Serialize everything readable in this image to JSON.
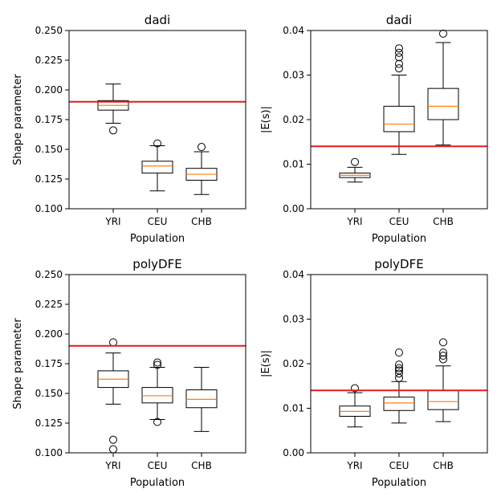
{
  "chart_data": [
    {
      "type": "boxplot",
      "title": "dadi",
      "xlabel": "Population",
      "ylabel": "Shape parameter",
      "categories": [
        "YRI",
        "CEU",
        "CHB"
      ],
      "ylim": [
        0.1,
        0.25
      ],
      "yticks": [
        "0.100",
        "0.125",
        "0.150",
        "0.175",
        "0.200",
        "0.225",
        "0.250"
      ],
      "reference_line": {
        "y": 0.19,
        "color": "#e41a1c"
      },
      "boxes": [
        {
          "whislo": 0.172,
          "q1": 0.183,
          "med": 0.187,
          "q3": 0.191,
          "whishi": 0.205,
          "fliers": [
            0.166
          ]
        },
        {
          "whislo": 0.115,
          "q1": 0.13,
          "med": 0.136,
          "q3": 0.14,
          "whishi": 0.153,
          "fliers": [
            0.155
          ]
        },
        {
          "whislo": 0.112,
          "q1": 0.124,
          "med": 0.129,
          "q3": 0.134,
          "whishi": 0.148,
          "fliers": [
            0.152
          ]
        }
      ]
    },
    {
      "type": "boxplot",
      "title": "dadi",
      "xlabel": "Population",
      "ylabel": "|E(s)|",
      "categories": [
        "YRI",
        "CEU",
        "CHB"
      ],
      "ylim": [
        0.0,
        0.04
      ],
      "yticks": [
        "0.00",
        "0.01",
        "0.02",
        "0.03",
        "0.04"
      ],
      "reference_line": {
        "y": 0.014,
        "color": "#e41a1c"
      },
      "boxes": [
        {
          "whislo": 0.006,
          "q1": 0.007,
          "med": 0.0075,
          "q3": 0.008,
          "whishi": 0.0093,
          "fliers": [
            0.0105
          ]
        },
        {
          "whislo": 0.0122,
          "q1": 0.0173,
          "med": 0.019,
          "q3": 0.023,
          "whishi": 0.03,
          "fliers": [
            0.0315,
            0.0325,
            0.034,
            0.035,
            0.036
          ]
        },
        {
          "whislo": 0.0143,
          "q1": 0.02,
          "med": 0.023,
          "q3": 0.027,
          "whishi": 0.0373,
          "fliers": [
            0.0393
          ]
        }
      ]
    },
    {
      "type": "boxplot",
      "title": "polyDFE",
      "xlabel": "Population",
      "ylabel": "Shape parameter",
      "categories": [
        "YRI",
        "CEU",
        "CHB"
      ],
      "ylim": [
        0.1,
        0.25
      ],
      "yticks": [
        "0.100",
        "0.125",
        "0.150",
        "0.175",
        "0.200",
        "0.225",
        "0.250"
      ],
      "reference_line": {
        "y": 0.19,
        "color": "#e41a1c"
      },
      "boxes": [
        {
          "whislo": 0.141,
          "q1": 0.155,
          "med": 0.162,
          "q3": 0.169,
          "whishi": 0.184,
          "fliers": [
            0.193,
            0.111,
            0.103
          ]
        },
        {
          "whislo": 0.128,
          "q1": 0.142,
          "med": 0.148,
          "q3": 0.155,
          "whishi": 0.172,
          "fliers": [
            0.174,
            0.176,
            0.126
          ]
        },
        {
          "whislo": 0.118,
          "q1": 0.138,
          "med": 0.145,
          "q3": 0.153,
          "whishi": 0.172,
          "fliers": []
        }
      ]
    },
    {
      "type": "boxplot",
      "title": "polyDFE",
      "xlabel": "Population",
      "ylabel": "|E(s)|",
      "categories": [
        "YRI",
        "CEU",
        "CHB"
      ],
      "ylim": [
        0.0,
        0.04
      ],
      "yticks": [
        "0.00",
        "0.01",
        "0.02",
        "0.03",
        "0.04"
      ],
      "reference_line": {
        "y": 0.014,
        "color": "#e41a1c"
      },
      "boxes": [
        {
          "whislo": 0.0058,
          "q1": 0.0082,
          "med": 0.0093,
          "q3": 0.0105,
          "whishi": 0.0135,
          "fliers": [
            0.0145
          ]
        },
        {
          "whislo": 0.0067,
          "q1": 0.0095,
          "med": 0.0112,
          "q3": 0.0125,
          "whishi": 0.016,
          "fliers": [
            0.0168,
            0.0178,
            0.0185,
            0.019,
            0.0198,
            0.0225
          ]
        },
        {
          "whislo": 0.007,
          "q1": 0.0097,
          "med": 0.0115,
          "q3": 0.014,
          "whishi": 0.0195,
          "fliers": [
            0.021,
            0.0218,
            0.0225,
            0.0248
          ]
        }
      ]
    }
  ]
}
